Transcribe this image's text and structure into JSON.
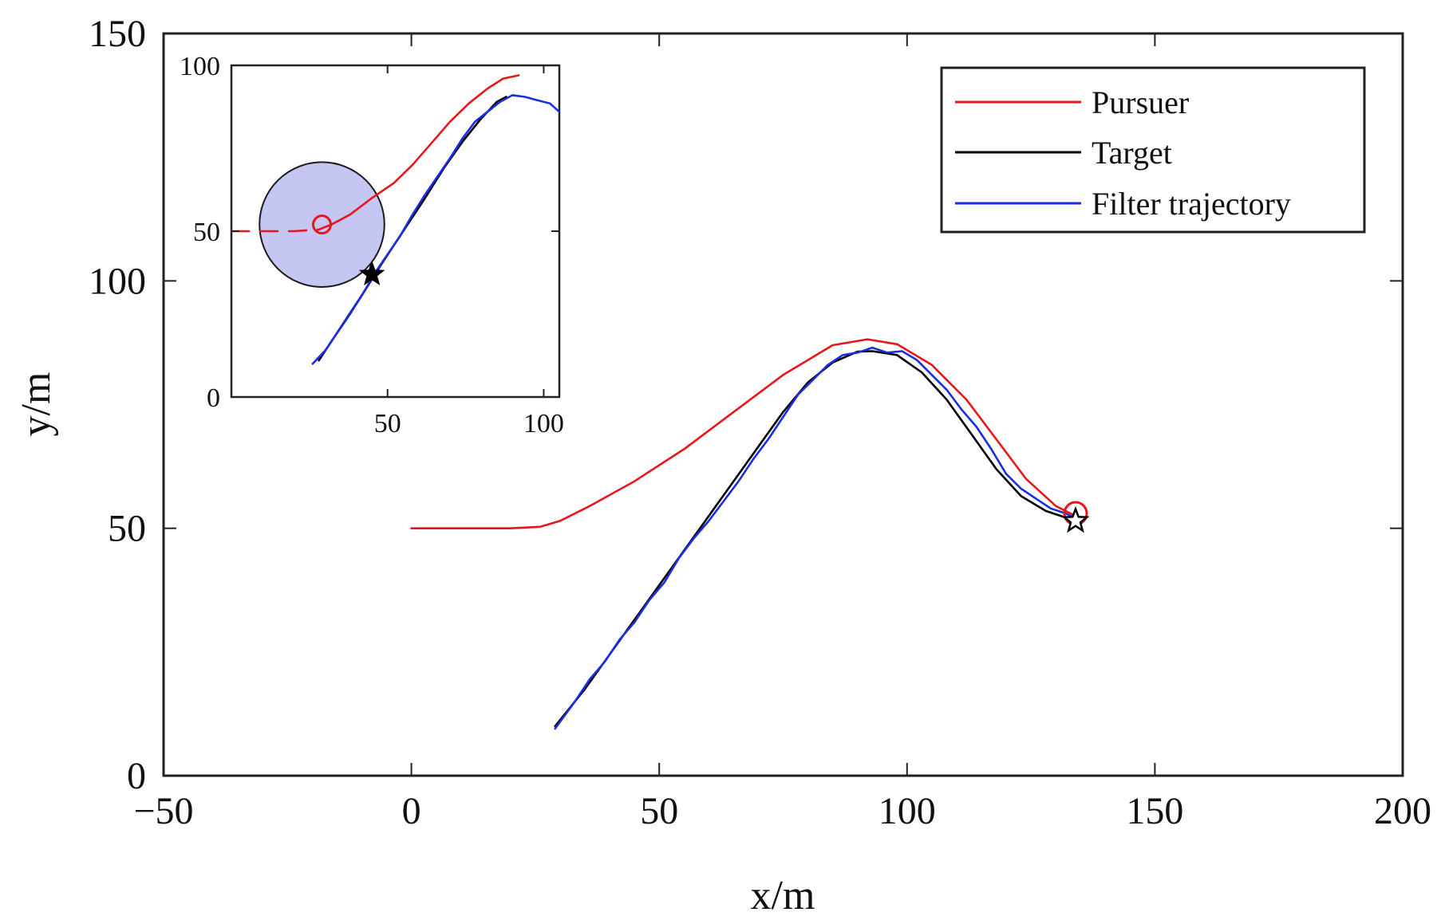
{
  "chart_data": [
    {
      "name": "main-plot",
      "type": "line",
      "xlabel": "x/m",
      "ylabel": "y/m",
      "xlim": [
        -50,
        200
      ],
      "ylim": [
        0,
        150
      ],
      "xticks": [
        -50,
        0,
        50,
        100,
        150,
        200
      ],
      "xtick_labels": [
        "−50",
        "0",
        "50",
        "100",
        "150",
        "200"
      ],
      "yticks": [
        0,
        50,
        100,
        150
      ],
      "ytick_labels": [
        "0",
        "50",
        "100",
        "150"
      ],
      "grid": false,
      "legend_position": "top-right",
      "legend": [
        {
          "label": "Pursuer",
          "color": "#e8161b"
        },
        {
          "label": "Target",
          "color": "#000000"
        },
        {
          "label": "Filter trajectory",
          "color": "#1a2ee0"
        }
      ],
      "series": [
        {
          "name": "Pursuer",
          "color": "#e8161b",
          "x": [
            0,
            10,
            20,
            26,
            30,
            36,
            45,
            55,
            65,
            75,
            85,
            92,
            98,
            105,
            112,
            118,
            124,
            130,
            134
          ],
          "y": [
            50,
            50,
            50,
            50.3,
            51.5,
            54.5,
            59.5,
            66,
            73.5,
            81,
            87,
            88.2,
            87.2,
            83,
            76,
            68,
            60,
            54.5,
            52.5
          ]
        },
        {
          "name": "Target",
          "color": "#000000",
          "x": [
            29,
            35,
            40,
            45,
            50,
            55,
            60,
            65,
            70,
            75,
            80,
            85,
            90,
            93,
            98,
            103,
            108,
            113,
            118,
            123,
            128,
            134
          ],
          "y": [
            10,
            17.5,
            24.5,
            31.5,
            38.5,
            45.5,
            52.5,
            59.5,
            66.5,
            73.5,
            79.5,
            83.5,
            85.7,
            85.8,
            85,
            81.5,
            76,
            69,
            62,
            56.5,
            53.5,
            51.5
          ]
        },
        {
          "name": "Filter trajectory",
          "color": "#1a2ee0",
          "x": [
            29,
            33,
            36,
            39,
            42,
            45,
            48,
            51,
            54,
            57,
            60,
            63,
            66,
            69,
            72,
            75,
            78,
            81,
            84,
            87,
            90,
            93,
            96,
            99,
            102,
            105,
            108,
            111,
            114,
            117,
            120,
            123,
            126,
            129,
            132,
            134
          ],
          "y": [
            9.5,
            15,
            19.5,
            23,
            27.5,
            31,
            35.5,
            39,
            44,
            48,
            51.5,
            55.5,
            59.5,
            64,
            68,
            72.5,
            77,
            80,
            83,
            85,
            85.5,
            86.5,
            85.5,
            85.8,
            84,
            81,
            78,
            74,
            70.5,
            66,
            61,
            58,
            56,
            54,
            53,
            52
          ]
        }
      ],
      "markers": [
        {
          "name": "pursuer-end",
          "shape": "circle-open",
          "color": "#e8161b",
          "x": 134,
          "y": 53
        },
        {
          "name": "target-end",
          "shape": "star-open",
          "color": "#000000",
          "x": 134,
          "y": 51.5
        }
      ]
    },
    {
      "name": "inset-plot",
      "type": "line",
      "xlim": [
        0,
        105
      ],
      "ylim": [
        0,
        100
      ],
      "xticks": [
        50,
        100
      ],
      "xtick_labels": [
        "50",
        "100"
      ],
      "yticks": [
        0,
        50,
        100
      ],
      "ytick_labels": [
        "0",
        "50",
        "100"
      ],
      "grid": false,
      "series": [
        {
          "name": "Pursuer (dashed approach)",
          "color": "#e8161b",
          "style": "dashed",
          "x": [
            0,
            10,
            20,
            28,
            32
          ],
          "y": [
            50,
            50,
            50,
            50.5,
            52
          ]
        },
        {
          "name": "Pursuer",
          "color": "#e8161b",
          "x": [
            32,
            38,
            45,
            52,
            58,
            64,
            70,
            76,
            82,
            87,
            92
          ],
          "y": [
            52,
            55,
            60,
            64.5,
            70,
            76.5,
            83,
            88.5,
            93,
            96,
            97
          ]
        },
        {
          "name": "Target",
          "color": "#000000",
          "x": [
            28,
            35,
            42,
            48,
            55,
            62,
            68,
            74,
            80,
            85,
            88
          ],
          "y": [
            11,
            21,
            31,
            40,
            50,
            60,
            69,
            77,
            84,
            89,
            90.5
          ]
        },
        {
          "name": "Filter trajectory",
          "color": "#1a2ee0",
          "x": [
            26,
            30,
            34,
            38,
            42,
            46,
            50,
            54,
            58,
            62,
            66,
            70,
            74,
            78,
            82,
            86,
            90,
            94,
            98,
            102,
            105
          ],
          "y": [
            10,
            14,
            19.5,
            25,
            31,
            37.5,
            43,
            48.5,
            55,
            61,
            66.5,
            72,
            78,
            83,
            86,
            89,
            91,
            90.5,
            89.5,
            88.5,
            86
          ]
        }
      ],
      "capture_circle": {
        "center_x": 29,
        "center_y": 52,
        "radius": 20,
        "fill": "#c5c7f2"
      },
      "markers": [
        {
          "name": "pursuer-start",
          "shape": "circle-open",
          "color": "#e8161b",
          "x": 29,
          "y": 52
        },
        {
          "name": "target-start",
          "shape": "star-filled",
          "color": "#000000",
          "x": 45,
          "y": 37
        }
      ]
    }
  ]
}
